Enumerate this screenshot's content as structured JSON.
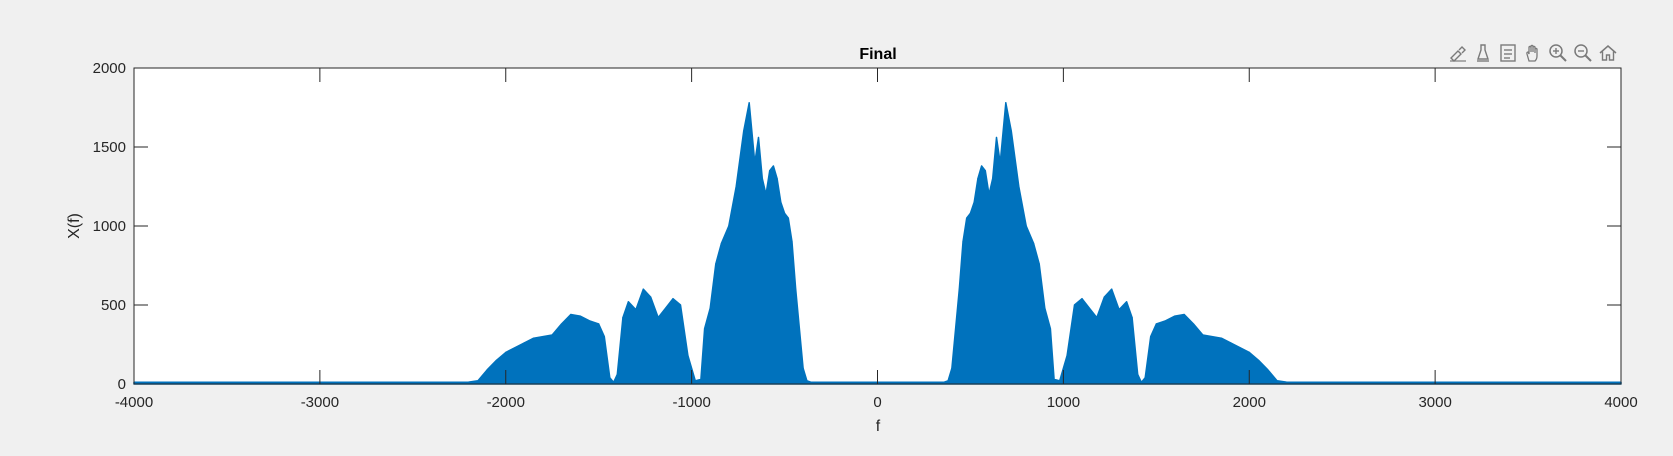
{
  "chart_data": {
    "type": "area",
    "title": "Final",
    "xlabel": "f",
    "ylabel": "X(f)",
    "xlim": [
      -4000,
      4000
    ],
    "ylim": [
      0,
      2000
    ],
    "xticks": [
      -4000,
      -3000,
      -2000,
      -1000,
      0,
      1000,
      2000,
      3000,
      4000
    ],
    "xtick_labels": [
      "-4000",
      "-3000",
      "-2000",
      "-1000",
      "0",
      "1000",
      "2000",
      "3000",
      "4000"
    ],
    "yticks": [
      0,
      500,
      1000,
      1500,
      2000
    ],
    "ytick_labels": [
      "0",
      "500",
      "1000",
      "1500",
      "2000"
    ],
    "grid": false,
    "series": [
      {
        "color": "#0072bd",
        "x": [
          -4000,
          -2300,
          -2200,
          -2150,
          -2100,
          -2050,
          -2000,
          -1950,
          -1900,
          -1850,
          -1800,
          -1750,
          -1700,
          -1650,
          -1600,
          -1550,
          -1500,
          -1470,
          -1440,
          -1420,
          -1400,
          -1370,
          -1340,
          -1300,
          -1260,
          -1220,
          -1180,
          -1140,
          -1100,
          -1060,
          -1020,
          -980,
          -950,
          -930,
          -900,
          -870,
          -840,
          -800,
          -760,
          -720,
          -690,
          -660,
          -640,
          -620,
          -600,
          -580,
          -560,
          -540,
          -520,
          -500,
          -480,
          -460,
          -440,
          -420,
          -400,
          -380,
          -360,
          -340,
          -300,
          300,
          340,
          360,
          380,
          400,
          420,
          440,
          460,
          480,
          500,
          520,
          540,
          560,
          580,
          600,
          620,
          640,
          660,
          690,
          720,
          760,
          800,
          840,
          870,
          900,
          930,
          950,
          980,
          1020,
          1060,
          1100,
          1140,
          1180,
          1220,
          1260,
          1300,
          1340,
          1370,
          1400,
          1420,
          1440,
          1470,
          1500,
          1550,
          1600,
          1650,
          1700,
          1750,
          1800,
          1850,
          1900,
          1950,
          2000,
          2050,
          2100,
          2150,
          2200,
          2300,
          4000
        ],
        "y": [
          10,
          10,
          12,
          20,
          90,
          150,
          200,
          230,
          260,
          290,
          300,
          310,
          380,
          440,
          430,
          400,
          380,
          300,
          40,
          10,
          60,
          420,
          520,
          470,
          600,
          550,
          420,
          480,
          540,
          500,
          180,
          20,
          30,
          350,
          480,
          760,
          890,
          1000,
          1250,
          1600,
          1780,
          1400,
          1560,
          1300,
          1200,
          1350,
          1380,
          1300,
          1150,
          1080,
          1050,
          900,
          600,
          350,
          100,
          20,
          12,
          10,
          10,
          10,
          10,
          12,
          20,
          100,
          350,
          600,
          900,
          1050,
          1080,
          1150,
          1300,
          1380,
          1350,
          1200,
          1300,
          1560,
          1400,
          1780,
          1600,
          1250,
          1000,
          890,
          760,
          480,
          350,
          30,
          20,
          180,
          500,
          540,
          480,
          420,
          550,
          600,
          470,
          520,
          420,
          60,
          10,
          40,
          300,
          380,
          400,
          430,
          440,
          380,
          310,
          300,
          290,
          260,
          230,
          200,
          150,
          90,
          20,
          12,
          10,
          10
        ]
      }
    ]
  },
  "toolbar": {
    "icons": [
      "brush-icon",
      "data-tips-icon",
      "legend-icon",
      "pan-hand-icon",
      "zoom-in-icon",
      "zoom-out-icon",
      "home-icon"
    ]
  }
}
